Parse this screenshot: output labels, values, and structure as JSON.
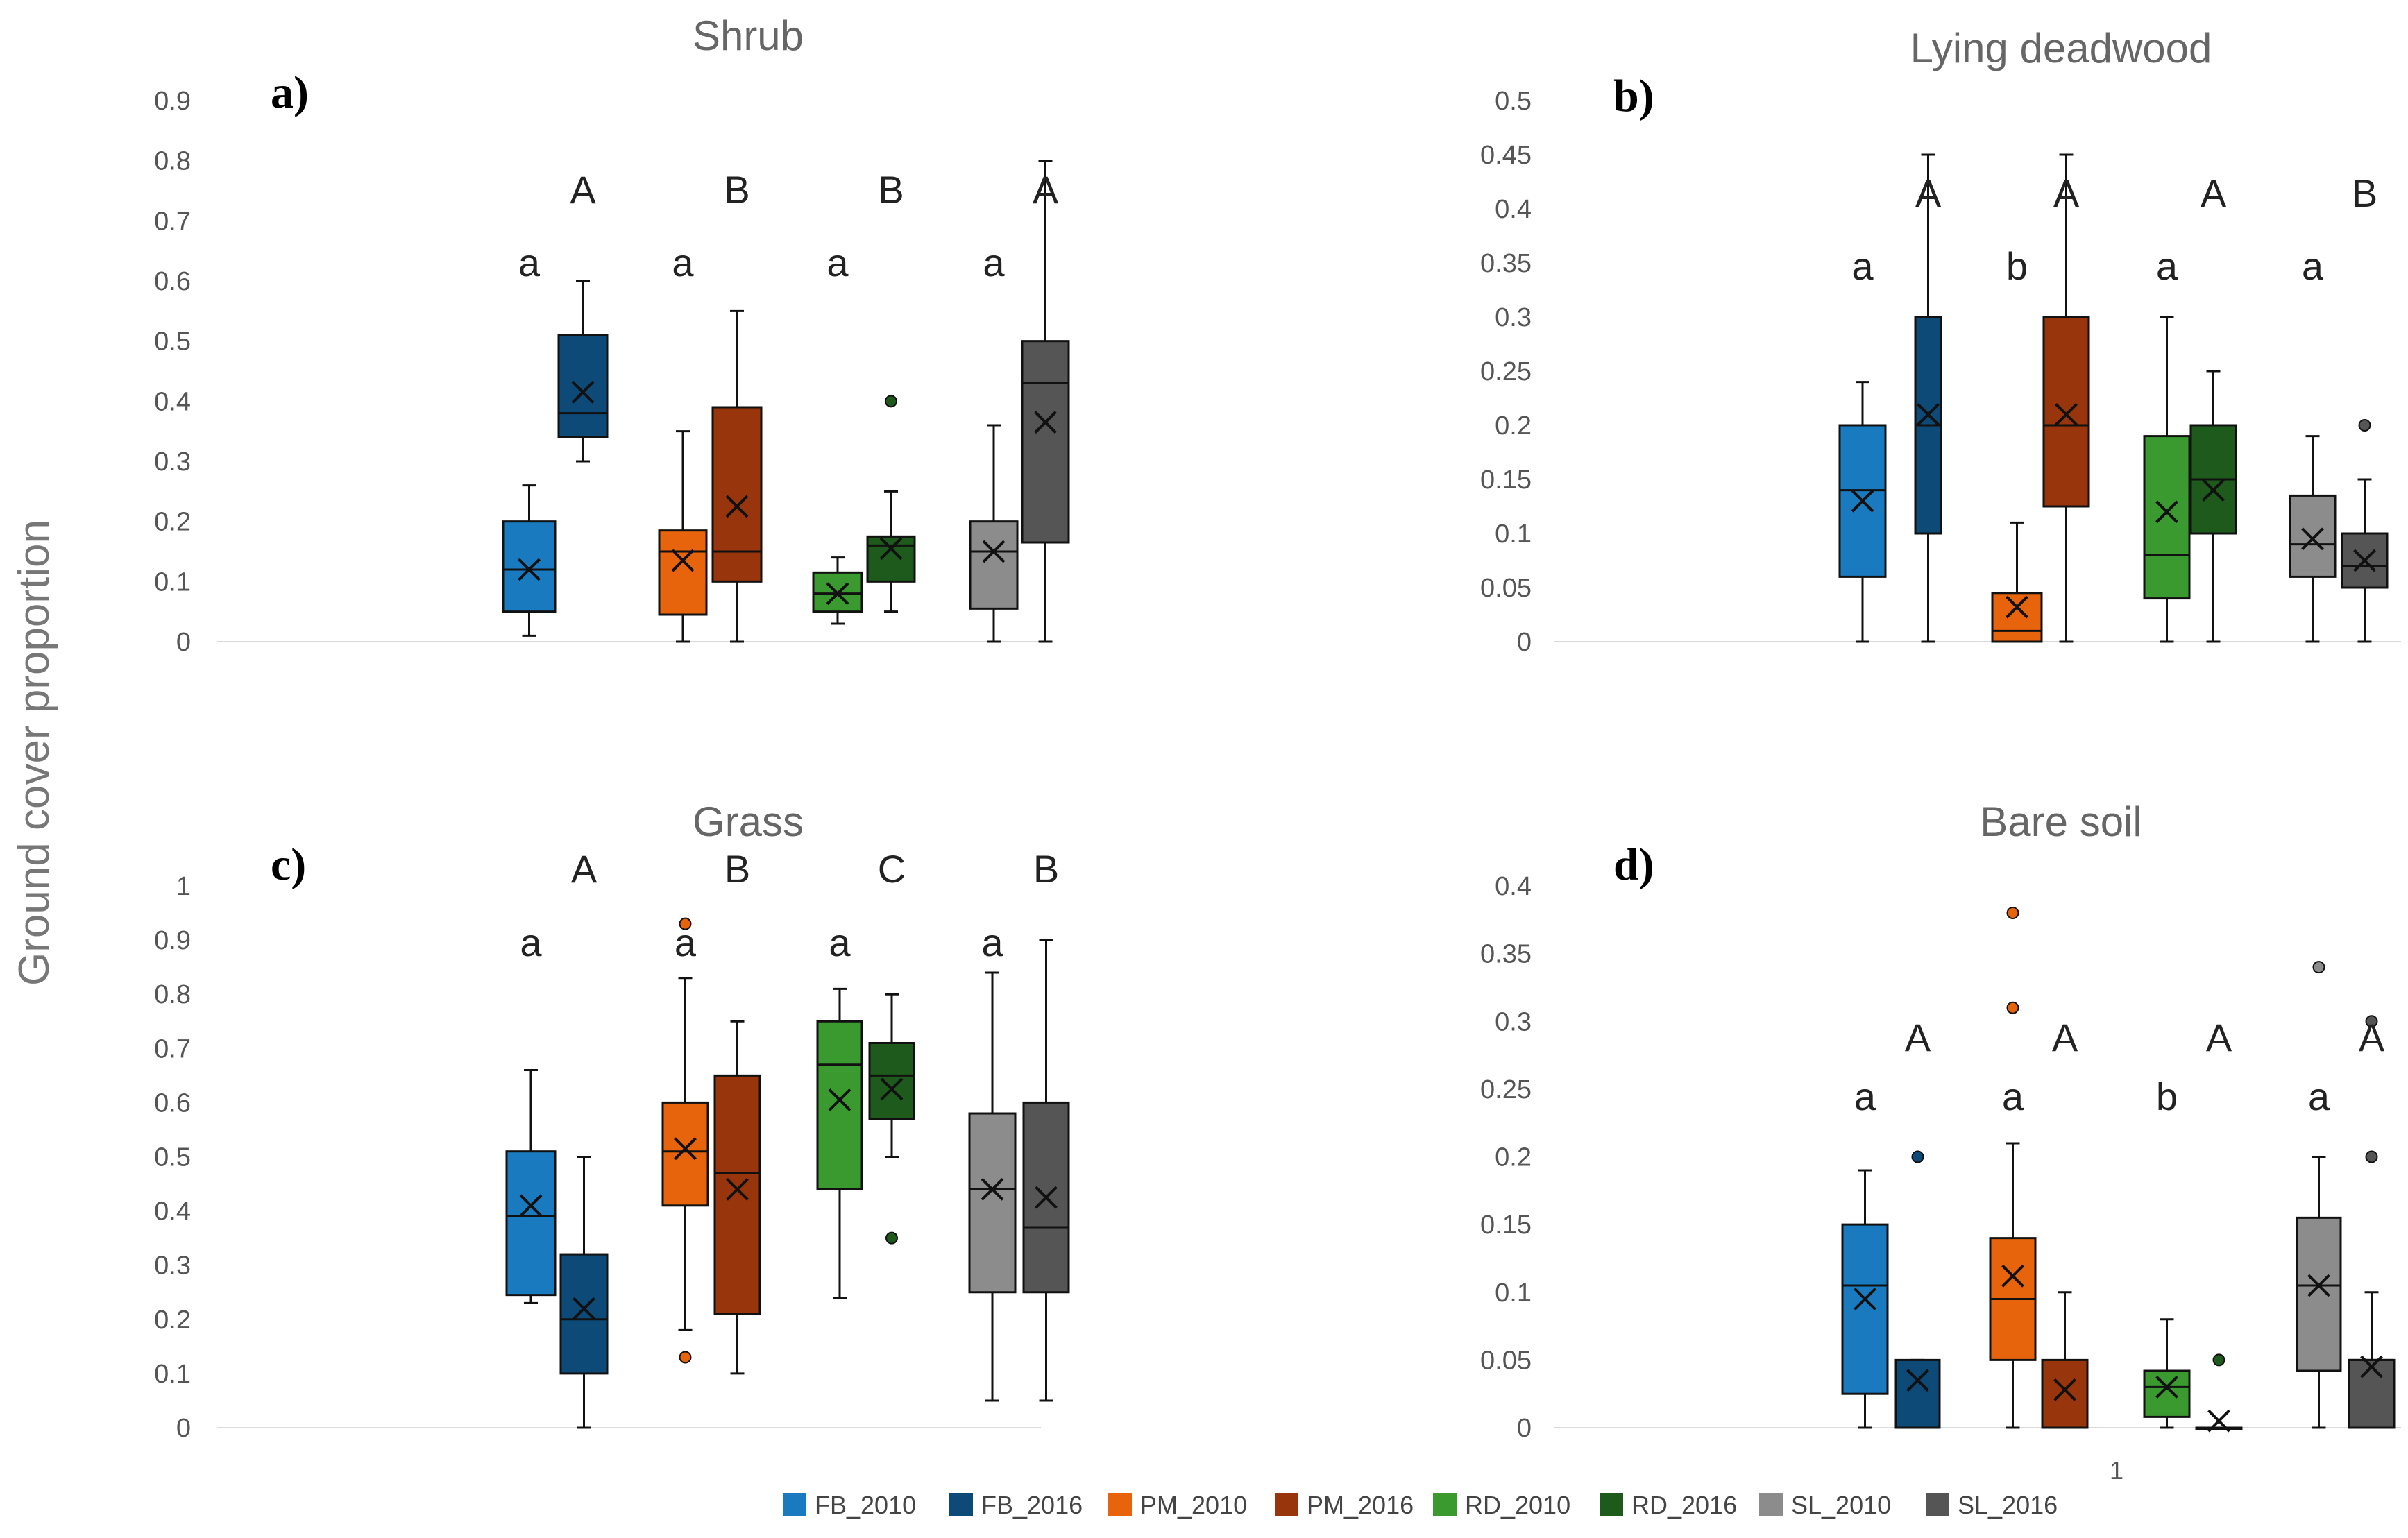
{
  "y_axis_label": "Ground cover proportion",
  "stray_label": "1",
  "legend": [
    {
      "name": "FB_2010",
      "color": "#1a7ac0"
    },
    {
      "name": "FB_2016",
      "color": "#0d4a78"
    },
    {
      "name": "PM_2010",
      "color": "#e8640c"
    },
    {
      "name": "PM_2016",
      "color": "#98350c"
    },
    {
      "name": "RD_2010",
      "color": "#3a9a30"
    },
    {
      "name": "RD_2016",
      "color": "#1d5a1b"
    },
    {
      "name": "SL_2010",
      "color": "#8c8c8c"
    },
    {
      "name": "SL_2016",
      "color": "#555555"
    }
  ],
  "chart_data": [
    {
      "type": "box",
      "panel": "a)",
      "title": "Shrub",
      "ylim": [
        0,
        0.9
      ],
      "yticks": [
        "0",
        "0.1",
        "0.2",
        "0.3",
        "0.4",
        "0.5",
        "0.6",
        "0.7",
        "0.8",
        "0.9"
      ],
      "groups": [
        {
          "site": "FB",
          "letter_2010": "a",
          "letter_2016": "A"
        },
        {
          "site": "PM",
          "letter_2010": "a",
          "letter_2016": "B"
        },
        {
          "site": "RD",
          "letter_2010": "a",
          "letter_2016": "B"
        },
        {
          "site": "SL",
          "letter_2010": "a",
          "letter_2016": "A"
        }
      ],
      "boxes": [
        {
          "series": "FB_2010",
          "min": 0.01,
          "q1": 0.05,
          "median": 0.12,
          "q3": 0.2,
          "max": 0.26,
          "mean": 0.12,
          "outliers": []
        },
        {
          "series": "FB_2016",
          "min": 0.3,
          "q1": 0.34,
          "median": 0.38,
          "q3": 0.51,
          "max": 0.6,
          "mean": 0.415,
          "outliers": []
        },
        {
          "series": "PM_2010",
          "min": 0.0,
          "q1": 0.045,
          "median": 0.15,
          "q3": 0.185,
          "max": 0.35,
          "mean": 0.135,
          "outliers": []
        },
        {
          "series": "PM_2016",
          "min": 0.0,
          "q1": 0.1,
          "median": 0.15,
          "q3": 0.39,
          "max": 0.55,
          "mean": 0.225,
          "outliers": []
        },
        {
          "series": "RD_2010",
          "min": 0.03,
          "q1": 0.05,
          "median": 0.08,
          "q3": 0.115,
          "max": 0.14,
          "mean": 0.08,
          "outliers": []
        },
        {
          "series": "RD_2016",
          "min": 0.05,
          "q1": 0.1,
          "median": 0.16,
          "q3": 0.175,
          "max": 0.25,
          "mean": 0.155,
          "outliers": [
            0.4
          ]
        },
        {
          "series": "SL_2010",
          "min": 0.0,
          "q1": 0.055,
          "median": 0.15,
          "q3": 0.2,
          "max": 0.36,
          "mean": 0.15,
          "outliers": []
        },
        {
          "series": "SL_2016",
          "min": 0.0,
          "q1": 0.165,
          "median": 0.43,
          "q3": 0.5,
          "max": 0.8,
          "mean": 0.365,
          "outliers": []
        }
      ]
    },
    {
      "type": "box",
      "panel": "b)",
      "title": "Lying deadwood",
      "ylim": [
        0,
        0.5
      ],
      "yticks": [
        "0",
        "0.05",
        "0.1",
        "0.15",
        "0.2",
        "0.25",
        "0.3",
        "0.35",
        "0.4",
        "0.45",
        "0.5"
      ],
      "groups": [
        {
          "site": "FB",
          "letter_2010": "a",
          "letter_2016": "A"
        },
        {
          "site": "PM",
          "letter_2010": "b",
          "letter_2016": "A"
        },
        {
          "site": "RD",
          "letter_2010": "a",
          "letter_2016": "A"
        },
        {
          "site": "SL",
          "letter_2010": "a",
          "letter_2016": "B"
        }
      ],
      "boxes": [
        {
          "series": "FB_2010",
          "min": 0.0,
          "q1": 0.06,
          "median": 0.14,
          "q3": 0.2,
          "max": 0.24,
          "mean": 0.13,
          "outliers": []
        },
        {
          "series": "FB_2016",
          "min": 0.0,
          "q1": 0.1,
          "median": 0.2,
          "q3": 0.3,
          "max": 0.45,
          "mean": 0.21,
          "outliers": []
        },
        {
          "series": "PM_2010",
          "min": 0.0,
          "q1": 0.0,
          "median": 0.01,
          "q3": 0.045,
          "max": 0.11,
          "mean": 0.032,
          "outliers": []
        },
        {
          "series": "PM_2016",
          "min": 0.0,
          "q1": 0.125,
          "median": 0.2,
          "q3": 0.3,
          "max": 0.45,
          "mean": 0.21,
          "outliers": []
        },
        {
          "series": "RD_2010",
          "min": 0.0,
          "q1": 0.04,
          "median": 0.08,
          "q3": 0.19,
          "max": 0.3,
          "mean": 0.12,
          "outliers": []
        },
        {
          "series": "RD_2016",
          "min": 0.0,
          "q1": 0.1,
          "median": 0.15,
          "q3": 0.2,
          "max": 0.25,
          "mean": 0.14,
          "outliers": []
        },
        {
          "series": "SL_2010",
          "min": 0.0,
          "q1": 0.06,
          "median": 0.09,
          "q3": 0.135,
          "max": 0.19,
          "mean": 0.095,
          "outliers": []
        },
        {
          "series": "SL_2016",
          "min": 0.0,
          "q1": 0.05,
          "median": 0.07,
          "q3": 0.1,
          "max": 0.15,
          "mean": 0.075,
          "outliers": [
            0.2
          ]
        }
      ]
    },
    {
      "type": "box",
      "panel": "c)",
      "title": "Grass",
      "ylim": [
        0,
        1
      ],
      "yticks": [
        "0",
        "0.1",
        "0.2",
        "0.3",
        "0.4",
        "0.5",
        "0.6",
        "0.7",
        "0.8",
        "0.9",
        "1"
      ],
      "groups": [
        {
          "site": "FB",
          "letter_2010": "a",
          "letter_2016": "A"
        },
        {
          "site": "PM",
          "letter_2010": "a",
          "letter_2016": "B"
        },
        {
          "site": "RD",
          "letter_2010": "a",
          "letter_2016": "C"
        },
        {
          "site": "SL",
          "letter_2010": "a",
          "letter_2016": "B"
        }
      ],
      "boxes": [
        {
          "series": "FB_2010",
          "min": 0.23,
          "q1": 0.245,
          "median": 0.39,
          "q3": 0.51,
          "max": 0.66,
          "mean": 0.41,
          "outliers": []
        },
        {
          "series": "FB_2016",
          "min": 0.0,
          "q1": 0.1,
          "median": 0.2,
          "q3": 0.32,
          "max": 0.5,
          "mean": 0.22,
          "outliers": []
        },
        {
          "series": "PM_2010",
          "min": 0.18,
          "q1": 0.41,
          "median": 0.51,
          "q3": 0.6,
          "max": 0.83,
          "mean": 0.515,
          "outliers": [
            0.93,
            0.13
          ]
        },
        {
          "series": "PM_2016",
          "min": 0.1,
          "q1": 0.21,
          "median": 0.47,
          "q3": 0.65,
          "max": 0.75,
          "mean": 0.44,
          "outliers": []
        },
        {
          "series": "RD_2010",
          "min": 0.24,
          "q1": 0.44,
          "median": 0.67,
          "q3": 0.75,
          "max": 0.81,
          "mean": 0.605,
          "outliers": []
        },
        {
          "series": "RD_2016",
          "min": 0.5,
          "q1": 0.57,
          "median": 0.65,
          "q3": 0.71,
          "max": 0.8,
          "mean": 0.625,
          "outliers": [
            0.35
          ]
        },
        {
          "series": "SL_2010",
          "min": 0.05,
          "q1": 0.25,
          "median": 0.44,
          "q3": 0.58,
          "max": 0.84,
          "mean": 0.44,
          "outliers": []
        },
        {
          "series": "SL_2016",
          "min": 0.05,
          "q1": 0.25,
          "median": 0.37,
          "q3": 0.6,
          "max": 0.9,
          "mean": 0.425,
          "outliers": []
        }
      ]
    },
    {
      "type": "box",
      "panel": "d)",
      "title": "Bare soil",
      "ylim": [
        0,
        0.4
      ],
      "yticks": [
        "0",
        "0.05",
        "0.1",
        "0.15",
        "0.2",
        "0.25",
        "0.3",
        "0.35",
        "0.4"
      ],
      "groups": [
        {
          "site": "FB",
          "letter_2010": "a",
          "letter_2016": "A"
        },
        {
          "site": "PM",
          "letter_2010": "a",
          "letter_2016": "A"
        },
        {
          "site": "RD",
          "letter_2010": "b",
          "letter_2016": "A"
        },
        {
          "site": "SL",
          "letter_2010": "a",
          "letter_2016": "A"
        }
      ],
      "boxes": [
        {
          "series": "FB_2010",
          "min": 0.0,
          "q1": 0.025,
          "median": 0.105,
          "q3": 0.15,
          "max": 0.19,
          "mean": 0.095,
          "outliers": []
        },
        {
          "series": "FB_2016",
          "min": 0.0,
          "q1": 0.0,
          "median": 0.0,
          "q3": 0.05,
          "max": 0.05,
          "mean": 0.035,
          "outliers": [
            0.2
          ]
        },
        {
          "series": "PM_2010",
          "min": 0.0,
          "q1": 0.05,
          "median": 0.095,
          "q3": 0.14,
          "max": 0.21,
          "mean": 0.112,
          "outliers": [
            0.38,
            0.31
          ]
        },
        {
          "series": "PM_2016",
          "min": 0.0,
          "q1": 0.0,
          "median": 0.0,
          "q3": 0.05,
          "max": 0.1,
          "mean": 0.028,
          "outliers": []
        },
        {
          "series": "RD_2010",
          "min": 0.0,
          "q1": 0.008,
          "median": 0.03,
          "q3": 0.042,
          "max": 0.08,
          "mean": 0.03,
          "outliers": []
        },
        {
          "series": "RD_2016",
          "min": 0.0,
          "q1": 0.0,
          "median": 0.0,
          "q3": 0.0,
          "max": 0.0,
          "mean": 0.005,
          "outliers": [
            0.05
          ]
        },
        {
          "series": "SL_2010",
          "min": 0.0,
          "q1": 0.042,
          "median": 0.105,
          "q3": 0.155,
          "max": 0.2,
          "mean": 0.105,
          "outliers": [
            0.34
          ]
        },
        {
          "series": "SL_2016",
          "min": 0.0,
          "q1": 0.0,
          "median": 0.05,
          "q3": 0.05,
          "max": 0.1,
          "mean": 0.045,
          "outliers": [
            0.3,
            0.2
          ]
        }
      ]
    }
  ]
}
